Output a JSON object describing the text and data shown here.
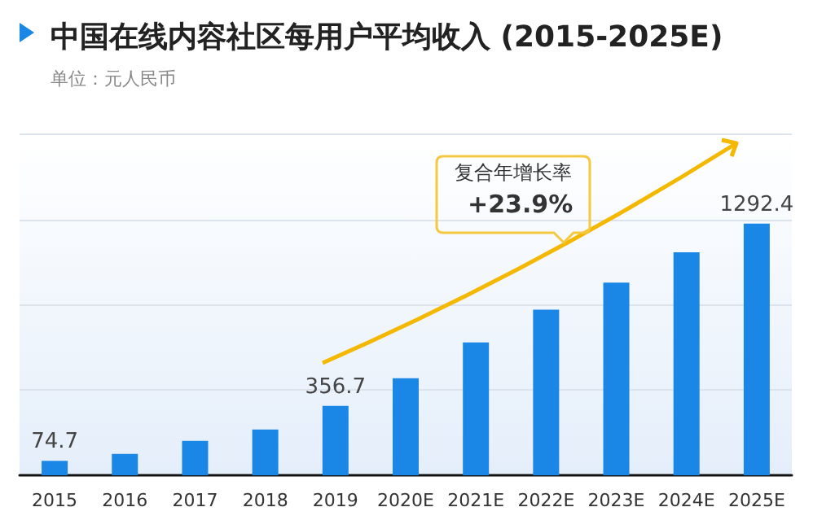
{
  "chart_data": {
    "type": "bar",
    "title": "中国在线内容社区每用户平均收入 (2015-2025E)",
    "subtitle": "单位：元人民币",
    "categories": [
      "2015",
      "2016",
      "2017",
      "2018",
      "2019",
      "2020E",
      "2021E",
      "2022E",
      "2023E",
      "2024E",
      "2025E"
    ],
    "values": [
      74.7,
      110,
      177,
      235,
      356.7,
      499,
      682,
      851,
      990,
      1146,
      1292.4
    ],
    "value_labels": [
      "74.7",
      null,
      null,
      null,
      "356.7",
      null,
      null,
      null,
      null,
      null,
      "1292.4"
    ],
    "color": "#1a87e6",
    "ylim": [
      0,
      1750
    ],
    "yticks": [
      {
        "value": 437.5,
        "label": null
      },
      {
        "value": 875,
        "label": null
      },
      {
        "value": 1312.5,
        "label": null
      },
      {
        "value": 1750,
        "label": null
      }
    ],
    "grid": "y",
    "tick_labels": "x",
    "annotations": [
      "复合年增长率",
      "+23.9%"
    ]
  }
}
